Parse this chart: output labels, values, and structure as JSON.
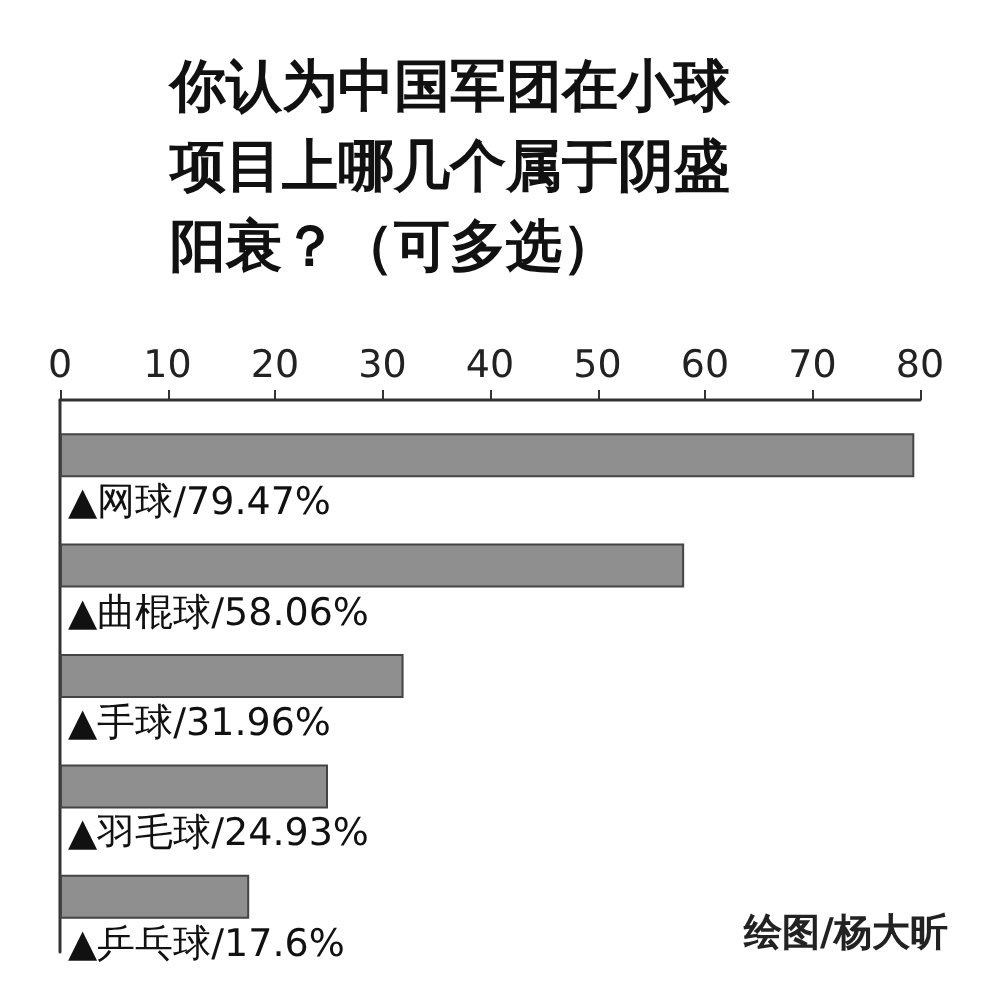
{
  "chart_data": {
    "type": "bar",
    "orientation": "horizontal",
    "title": "你认为中国军团在小球项目上哪几个属于阴盛阳衰？（可多选）",
    "categories": [
      "▲网球/79.47%",
      "▲曲棍球/58.06%",
      "▲手球/31.96%",
      "▲羽毛球/24.93%",
      "▲乒乓球/17.6%"
    ],
    "values": [
      79.47,
      58.06,
      31.96,
      24.93,
      17.6
    ],
    "color": "#8f8f8f",
    "xlim": [
      0,
      80
    ],
    "xticks": [
      0,
      10,
      20,
      30,
      40,
      50,
      60,
      70,
      80
    ],
    "grid": false,
    "annotations": [
      "绘图/杨大昕"
    ]
  }
}
